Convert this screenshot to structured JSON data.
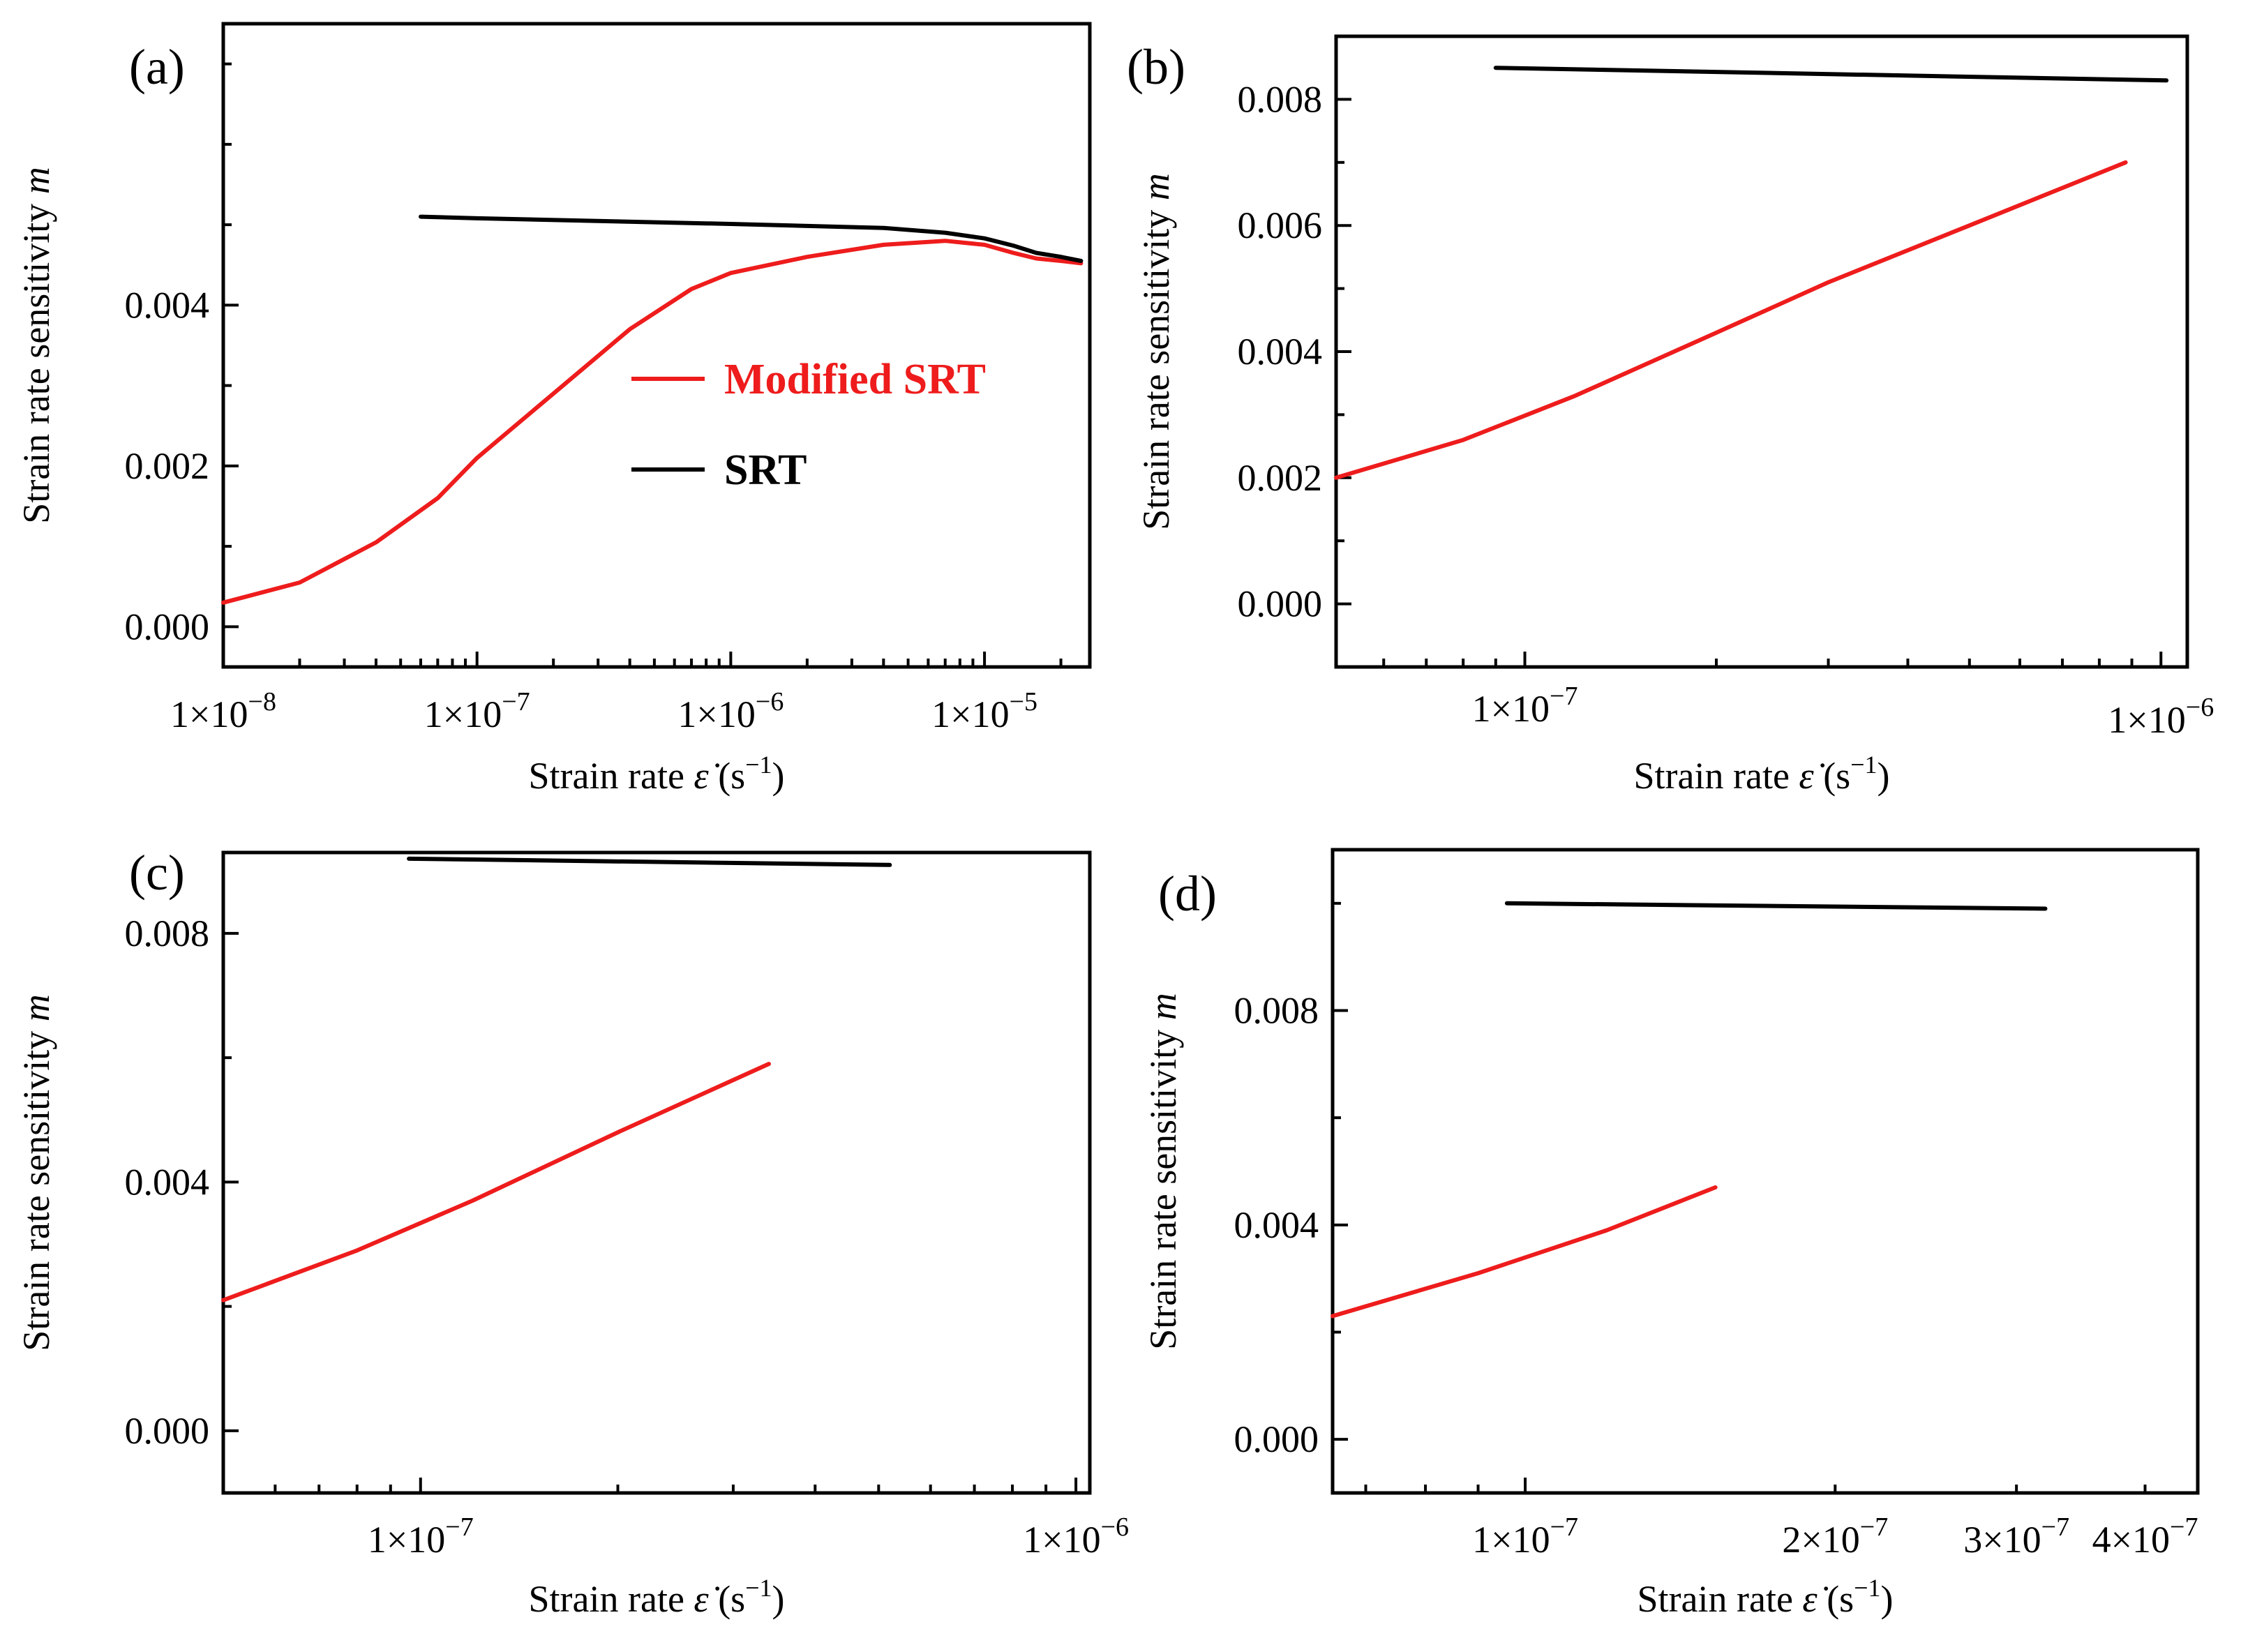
{
  "figure": {
    "colors": {
      "modified": "#ee1c1c",
      "srt": "#000000",
      "axis": "#000000"
    },
    "legend": {
      "modified_label": "Modified SRT",
      "srt_label": "SRT"
    }
  },
  "chart_data": [
    {
      "type": "line",
      "panel": "(a)",
      "xlabel": "Strain rate",
      "xlabel_symbol": "ε̇",
      "xlabel_units": "(s−1)",
      "ylabel": "Strain rate sensitivity",
      "ylabel_symbol": "m",
      "xscale": "log",
      "xlim": [
        1e-08,
        2.6e-05
      ],
      "ylim": [
        -0.0005,
        0.0075
      ],
      "xticks": [
        {
          "value": 1e-08,
          "label": "1×10−8"
        },
        {
          "value": 1e-07,
          "label": "1×10−7"
        },
        {
          "value": 1e-06,
          "label": "1×10−6"
        },
        {
          "value": 1e-05,
          "label": "1×10−5"
        }
      ],
      "yticks": [
        {
          "value": 0.0,
          "label": "0.000"
        },
        {
          "value": 0.002,
          "label": "0.002"
        },
        {
          "value": 0.004,
          "label": "0.004"
        }
      ],
      "legend_position": "center",
      "series": [
        {
          "name": "Modified SRT",
          "color": "#ee1c1c",
          "x": [
            1e-08,
            2e-08,
            4e-08,
            7e-08,
            1e-07,
            2e-07,
            4e-07,
            7e-07,
            1e-06,
            2e-06,
            4e-06,
            7e-06,
            1e-05,
            1.3e-05,
            1.6e-05,
            2e-05,
            2.4e-05
          ],
          "y": [
            0.0003,
            0.00055,
            0.00105,
            0.0016,
            0.0021,
            0.0029,
            0.0037,
            0.0042,
            0.0044,
            0.0046,
            0.00475,
            0.0048,
            0.00475,
            0.00465,
            0.00458,
            0.00455,
            0.00452
          ]
        },
        {
          "name": "SRT",
          "color": "#000000",
          "x": [
            6e-08,
            1e-07,
            1e-06,
            4e-06,
            7e-06,
            1e-05,
            1.3e-05,
            1.6e-05,
            2e-05,
            2.4e-05
          ],
          "y": [
            0.0051,
            0.00508,
            0.00501,
            0.00496,
            0.0049,
            0.00483,
            0.00474,
            0.00465,
            0.0046,
            0.00455
          ]
        }
      ]
    },
    {
      "type": "line",
      "panel": "(b)",
      "xlabel": "Strain rate",
      "xlabel_symbol": "ε̇",
      "xlabel_units": "(s−1)",
      "ylabel": "Strain rate sensitivity",
      "ylabel_symbol": "m",
      "xscale": "log",
      "xlim": [
        5.05e-08,
        1.1e-06
      ],
      "ylim": [
        -0.001,
        0.009
      ],
      "xticks": [
        {
          "value": 1e-07,
          "label": "1×10−7"
        },
        {
          "value": 1e-06,
          "label": "1×10−6"
        }
      ],
      "yticks": [
        {
          "value": 0.0,
          "label": "0.000"
        },
        {
          "value": 0.002,
          "label": "0.002"
        },
        {
          "value": 0.004,
          "label": "0.004"
        },
        {
          "value": 0.006,
          "label": "0.006"
        },
        {
          "value": 0.008,
          "label": "0.008"
        }
      ],
      "series": [
        {
          "name": "Modified SRT",
          "color": "#ee1c1c",
          "x": [
            5.05e-08,
            8e-08,
            1.2e-07,
            2e-07,
            3e-07,
            5e-07,
            8.8e-07
          ],
          "y": [
            0.002,
            0.0026,
            0.0033,
            0.0043,
            0.0051,
            0.006,
            0.007
          ]
        },
        {
          "name": "SRT",
          "color": "#000000",
          "x": [
            9e-08,
            1.02e-06
          ],
          "y": [
            0.0085,
            0.0083
          ]
        }
      ]
    },
    {
      "type": "line",
      "panel": "(c)",
      "xlabel": "Strain rate",
      "xlabel_symbol": "ε̇",
      "xlabel_units": "(s−1)",
      "ylabel": "Strain rate sensitivity",
      "ylabel_symbol": "m",
      "xscale": "log",
      "xlim": [
        5e-08,
        1.05e-06
      ],
      "ylim": [
        -0.001,
        0.0093
      ],
      "xticks": [
        {
          "value": 1e-07,
          "label": "1×10−7"
        },
        {
          "value": 1e-06,
          "label": "1×10−6"
        }
      ],
      "yticks": [
        {
          "value": 0.0,
          "label": "0.000"
        },
        {
          "value": 0.004,
          "label": "0.004"
        },
        {
          "value": 0.008,
          "label": "0.008"
        }
      ],
      "series": [
        {
          "name": "Modified SRT",
          "color": "#ee1c1c",
          "x": [
            5e-08,
            8e-08,
            1.2e-07,
            2e-07,
            3.4e-07
          ],
          "y": [
            0.0021,
            0.0029,
            0.0037,
            0.0048,
            0.0059
          ]
        },
        {
          "name": "SRT",
          "color": "#000000",
          "x": [
            9.6e-08,
            5.2e-07
          ],
          "y": [
            0.0092,
            0.0091
          ]
        }
      ]
    },
    {
      "type": "line",
      "panel": "(d)",
      "xlabel": "Strain rate",
      "xlabel_symbol": "ε̇",
      "xlabel_units": "(s−1)",
      "ylabel": "Strain rate sensitivity",
      "ylabel_symbol": "m",
      "xscale": "log",
      "xlim": [
        6.5e-08,
        4.5e-07
      ],
      "ylim": [
        -0.001,
        0.011
      ],
      "xticks": [
        {
          "value": 1e-07,
          "label": "1×10−7"
        },
        {
          "value": 2e-07,
          "label": "2×10−7"
        },
        {
          "value": 3e-07,
          "label": "3×10−7"
        },
        {
          "value": 4e-07,
          "label": "4×10−7"
        }
      ],
      "yticks": [
        {
          "value": 0.0,
          "label": "0.000"
        },
        {
          "value": 0.004,
          "label": "0.004"
        },
        {
          "value": 0.008,
          "label": "0.008"
        }
      ],
      "series": [
        {
          "name": "Modified SRT",
          "color": "#ee1c1c",
          "x": [
            6.5e-08,
            9e-08,
            1.2e-07,
            1.53e-07
          ],
          "y": [
            0.0023,
            0.0031,
            0.0039,
            0.0047
          ]
        },
        {
          "name": "SRT",
          "color": "#000000",
          "x": [
            9.6e-08,
            3.2e-07
          ],
          "y": [
            0.01,
            0.0099
          ]
        }
      ]
    }
  ]
}
